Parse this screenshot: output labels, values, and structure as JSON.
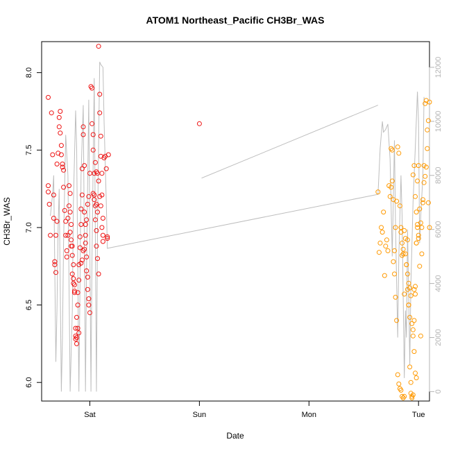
{
  "chart_data": {
    "type": "scatter",
    "title": "ATOM1 Northeast_Pacific CH3Br_WAS",
    "xlabel": "Date",
    "ylabel": "CH3Br_WAS",
    "x_ticks": [
      "Sat",
      "Sun",
      "Mon",
      "Tue"
    ],
    "x_tick_positions_days": [
      1,
      2,
      3,
      4
    ],
    "xlim_days": [
      0.56,
      4.1
    ],
    "ylim": [
      5.88,
      8.2
    ],
    "y_ticks": [
      6.0,
      6.5,
      7.0,
      7.5,
      8.0
    ],
    "y_tick_labels": [
      "6.0",
      "6.5",
      "7.0",
      "7.5",
      "8.0"
    ],
    "y2_ticks": [
      0,
      2000,
      4000,
      6000,
      8000,
      10000,
      12000
    ],
    "y2_tick_labels": [
      "0",
      "2000",
      "4000",
      "6000",
      "8000",
      "10000",
      "12000"
    ],
    "y2lim": [
      -350,
      12950
    ],
    "grid": false,
    "colors": {
      "series1": "#ee1111",
      "series2": "#ff9900",
      "altitude_line": "#bdbdbd",
      "right_axis": "#b3b3b3"
    },
    "series": [
      {
        "color": "#ee1111",
        "points": [
          [
            0.62,
            7.84
          ],
          [
            0.62,
            7.27
          ],
          [
            0.62,
            7.23
          ],
          [
            0.63,
            7.15
          ],
          [
            0.64,
            6.95
          ],
          [
            0.65,
            7.74
          ],
          [
            0.66,
            7.47
          ],
          [
            0.67,
            7.21
          ],
          [
            0.67,
            7.06
          ],
          [
            0.68,
            6.78
          ],
          [
            0.68,
            6.76
          ],
          [
            0.69,
            6.71
          ],
          [
            0.69,
            6.95
          ],
          [
            0.7,
            7.04
          ],
          [
            0.7,
            7.41
          ],
          [
            0.71,
            7.48
          ],
          [
            0.72,
            7.65
          ],
          [
            0.72,
            7.71
          ],
          [
            0.73,
            7.75
          ],
          [
            0.73,
            7.61
          ],
          [
            0.74,
            7.53
          ],
          [
            0.74,
            7.47
          ],
          [
            0.75,
            7.41
          ],
          [
            0.75,
            7.39
          ],
          [
            0.76,
            7.37
          ],
          [
            0.76,
            7.26
          ],
          [
            0.77,
            7.11
          ],
          [
            0.78,
            7.04
          ],
          [
            0.78,
            6.95
          ],
          [
            0.79,
            6.85
          ],
          [
            0.79,
            6.81
          ],
          [
            0.8,
            6.95
          ],
          [
            0.8,
            7.06
          ],
          [
            0.81,
            7.14
          ],
          [
            0.81,
            7.27
          ],
          [
            0.82,
            7.22
          ],
          [
            0.82,
            7.1
          ],
          [
            0.83,
            7.02
          ],
          [
            0.83,
            6.92
          ],
          [
            0.84,
            6.88
          ],
          [
            0.84,
            6.82
          ],
          [
            0.85,
            6.76
          ],
          [
            0.85,
            6.67
          ],
          [
            0.86,
            6.63
          ],
          [
            0.86,
            6.59
          ],
          [
            0.87,
            6.35
          ],
          [
            0.87,
            6.3
          ],
          [
            0.88,
            6.25
          ],
          [
            0.88,
            6.42
          ],
          [
            0.89,
            6.5
          ],
          [
            0.89,
            6.58
          ],
          [
            0.9,
            6.66
          ],
          [
            0.9,
            6.76
          ],
          [
            0.91,
            6.87
          ],
          [
            0.91,
            6.94
          ],
          [
            0.92,
            7.02
          ],
          [
            0.92,
            7.12
          ],
          [
            0.93,
            7.21
          ],
          [
            0.93,
            7.38
          ],
          [
            0.94,
            7.65
          ],
          [
            0.94,
            7.6
          ],
          [
            0.95,
            7.4
          ],
          [
            0.95,
            7.1
          ],
          [
            0.96,
            7.02
          ],
          [
            0.96,
            6.9
          ],
          [
            0.97,
            6.81
          ],
          [
            0.97,
            6.72
          ],
          [
            0.98,
            6.68
          ],
          [
            0.98,
            6.6
          ],
          [
            0.99,
            6.54
          ],
          [
            0.99,
            6.5
          ],
          [
            1.0,
            6.45
          ],
          [
            0.9,
            6.32
          ],
          [
            0.89,
            6.35
          ],
          [
            0.88,
            6.29
          ],
          [
            0.87,
            6.28
          ],
          [
            0.86,
            6.58
          ],
          [
            0.85,
            6.64
          ],
          [
            0.84,
            6.7
          ],
          [
            0.83,
            6.88
          ],
          [
            0.82,
            6.97
          ],
          [
            0.92,
            6.77
          ],
          [
            0.93,
            6.79
          ],
          [
            0.94,
            6.85
          ],
          [
            0.95,
            6.86
          ],
          [
            0.96,
            6.95
          ],
          [
            0.97,
            7.05
          ],
          [
            0.98,
            7.15
          ],
          [
            0.99,
            7.2
          ],
          [
            1.0,
            7.35
          ],
          [
            1.01,
            7.91
          ],
          [
            1.02,
            7.9
          ],
          [
            1.02,
            7.67
          ],
          [
            1.03,
            7.6
          ],
          [
            1.03,
            7.5
          ],
          [
            1.04,
            7.35
          ],
          [
            1.04,
            7.21
          ],
          [
            1.05,
            7.14
          ],
          [
            1.05,
            7.05
          ],
          [
            1.06,
            6.98
          ],
          [
            1.06,
            6.88
          ],
          [
            1.07,
            6.8
          ],
          [
            1.08,
            6.7
          ],
          [
            1.08,
            8.17
          ],
          [
            1.09,
            7.86
          ],
          [
            1.09,
            7.74
          ],
          [
            1.1,
            7.59
          ],
          [
            1.1,
            7.46
          ],
          [
            1.11,
            7.35
          ],
          [
            1.11,
            7.21
          ],
          [
            1.12,
            7.06
          ],
          [
            1.12,
            6.95
          ],
          [
            1.13,
            7.45
          ],
          [
            1.14,
            7.46
          ],
          [
            1.15,
            7.38
          ],
          [
            1.16,
            6.94
          ],
          [
            1.16,
            6.93
          ],
          [
            1.17,
            7.47
          ],
          [
            1.05,
            7.42
          ],
          [
            1.06,
            7.36
          ],
          [
            1.07,
            7.35
          ],
          [
            1.08,
            7.3
          ],
          [
            1.09,
            7.2
          ],
          [
            1.1,
            7.14
          ],
          [
            1.11,
            7.0
          ],
          [
            1.12,
            6.91
          ],
          [
            1.06,
            7.15
          ],
          [
            1.07,
            7.1
          ],
          [
            1.03,
            7.22
          ],
          [
            1.04,
            7.18
          ],
          [
            2.0,
            7.67
          ]
        ]
      },
      {
        "color": "#ff9900",
        "points": [
          [
            3.63,
            7.23
          ],
          [
            3.64,
            6.84
          ],
          [
            3.65,
            6.9
          ],
          [
            3.66,
            7.0
          ],
          [
            3.67,
            6.97
          ],
          [
            3.68,
            7.1
          ],
          [
            3.69,
            6.69
          ],
          [
            3.7,
            6.88
          ],
          [
            3.71,
            6.92
          ],
          [
            3.72,
            6.85
          ],
          [
            3.73,
            7.27
          ],
          [
            3.74,
            7.2
          ],
          [
            3.75,
            7.26
          ],
          [
            3.76,
            7.5
          ],
          [
            3.77,
            6.78
          ],
          [
            3.78,
            6.7
          ],
          [
            3.79,
            7.0
          ],
          [
            3.8,
            7.17
          ],
          [
            3.81,
            7.52
          ],
          [
            3.82,
            7.48
          ],
          [
            3.83,
            7.14
          ],
          [
            3.84,
            7.0
          ],
          [
            3.85,
            6.9
          ],
          [
            3.86,
            6.86
          ],
          [
            3.87,
            6.57
          ],
          [
            3.88,
            6.93
          ],
          [
            3.89,
            6.76
          ],
          [
            3.9,
            6.6
          ],
          [
            3.91,
            6.5
          ],
          [
            3.92,
            6.42
          ],
          [
            3.93,
            6.0
          ],
          [
            3.94,
            5.9
          ],
          [
            3.95,
            6.3
          ],
          [
            3.96,
            6.4
          ],
          [
            3.97,
            6.57
          ],
          [
            3.98,
            6.9
          ],
          [
            3.99,
            7.0
          ],
          [
            4.0,
            6.93
          ],
          [
            3.95,
            7.34
          ],
          [
            3.96,
            7.4
          ],
          [
            3.97,
            7.2
          ],
          [
            3.98,
            7.1
          ],
          [
            3.99,
            7.02
          ],
          [
            4.0,
            6.95
          ],
          [
            4.01,
            6.75
          ],
          [
            4.02,
            6.3
          ],
          [
            4.03,
            6.83
          ],
          [
            4.04,
            7.18
          ],
          [
            4.05,
            7.4
          ],
          [
            4.06,
            7.8
          ],
          [
            4.07,
            7.82
          ],
          [
            4.08,
            7.51
          ],
          [
            4.09,
            7.16
          ],
          [
            4.1,
            7.0
          ],
          [
            3.9,
            6.92
          ],
          [
            3.91,
            6.5
          ],
          [
            3.92,
            6.1
          ],
          [
            3.93,
            5.93
          ],
          [
            3.94,
            5.91
          ],
          [
            3.95,
            5.92
          ],
          [
            3.96,
            6.6
          ],
          [
            3.97,
            6.62
          ],
          [
            3.98,
            6.9
          ],
          [
            3.99,
            7.3
          ],
          [
            4.0,
            7.4
          ],
          [
            3.84,
            6.97
          ],
          [
            3.85,
            6.82
          ],
          [
            3.86,
            6.83
          ],
          [
            3.87,
            6.98
          ],
          [
            3.88,
            6.83
          ],
          [
            3.89,
            6.76
          ],
          [
            3.9,
            6.7
          ],
          [
            3.91,
            6.64
          ],
          [
            3.92,
            6.61
          ],
          [
            3.93,
            6.56
          ],
          [
            3.94,
            6.38
          ],
          [
            3.95,
            6.34
          ],
          [
            3.96,
            6.2
          ],
          [
            3.97,
            6.06
          ],
          [
            3.98,
            6.03
          ],
          [
            4.01,
            7.12
          ],
          [
            4.02,
            7.03
          ],
          [
            4.03,
            7.0
          ],
          [
            4.04,
            7.16
          ],
          [
            4.05,
            7.29
          ],
          [
            4.06,
            7.33
          ],
          [
            4.07,
            7.39
          ],
          [
            4.08,
            7.63
          ],
          [
            4.09,
            7.69
          ],
          [
            4.1,
            7.81
          ],
          [
            3.75,
            7.51
          ],
          [
            3.76,
            7.3
          ],
          [
            3.77,
            7.18
          ],
          [
            3.78,
            6.85
          ],
          [
            3.79,
            6.55
          ],
          [
            3.8,
            6.4
          ],
          [
            3.81,
            6.05
          ],
          [
            3.82,
            5.99
          ],
          [
            3.83,
            5.96
          ],
          [
            3.84,
            5.95
          ],
          [
            3.85,
            5.91
          ],
          [
            3.86,
            5.9
          ],
          [
            3.87,
            5.91
          ]
        ]
      }
    ],
    "altitude_line": {
      "y2_axis": "right",
      "points": [
        [
          0.64,
          6500
        ],
        [
          0.66,
          7300
        ],
        [
          0.67,
          8000
        ],
        [
          0.69,
          1100
        ],
        [
          0.7,
          3000
        ],
        [
          0.71,
          6000
        ],
        [
          0.72,
          7500
        ],
        [
          0.74,
          0
        ],
        [
          0.75,
          2000
        ],
        [
          0.76,
          5500
        ],
        [
          0.78,
          9500
        ],
        [
          0.8,
          8000
        ],
        [
          0.82,
          0
        ],
        [
          0.84,
          3000
        ],
        [
          0.85,
          7000
        ],
        [
          0.87,
          10400
        ],
        [
          0.88,
          9000
        ],
        [
          0.9,
          0
        ],
        [
          0.91,
          4000
        ],
        [
          0.92,
          8000
        ],
        [
          0.94,
          10600
        ],
        [
          0.96,
          0
        ],
        [
          0.97,
          4500
        ],
        [
          0.99,
          10800
        ],
        [
          1.01,
          0
        ],
        [
          1.02,
          5000
        ],
        [
          1.04,
          11600
        ],
        [
          1.06,
          0
        ],
        [
          1.07,
          6000
        ],
        [
          1.09,
          12200
        ],
        [
          1.1,
          12100
        ],
        [
          1.12,
          12000
        ],
        [
          1.13,
          10000
        ],
        [
          1.15,
          7000
        ],
        [
          1.16,
          5300
        ],
        [
          3.63,
          7300
        ],
        [
          3.65,
          9000
        ],
        [
          3.67,
          10000
        ],
        [
          3.68,
          9600
        ],
        [
          3.7,
          9700
        ],
        [
          3.72,
          9900
        ],
        [
          3.74,
          8600
        ],
        [
          3.76,
          5000
        ],
        [
          3.78,
          9300
        ],
        [
          3.79,
          6200
        ],
        [
          3.81,
          2000
        ],
        [
          3.82,
          5000
        ],
        [
          3.84,
          8000
        ],
        [
          3.85,
          6500
        ],
        [
          3.87,
          500
        ],
        [
          3.88,
          3000
        ],
        [
          3.89,
          2000
        ],
        [
          3.9,
          6000
        ],
        [
          3.92,
          1000
        ],
        [
          3.93,
          4000
        ],
        [
          3.95,
          7000
        ],
        [
          3.97,
          9000
        ],
        [
          3.99,
          11100
        ],
        [
          4.0,
          10000
        ],
        [
          4.01,
          5500
        ],
        [
          4.02,
          6500
        ],
        [
          4.04,
          8000
        ],
        [
          4.05,
          10900
        ]
      ],
      "extra_segment": [
        [
          2.02,
          7900
        ],
        [
          3.63,
          10600
        ]
      ]
    }
  }
}
